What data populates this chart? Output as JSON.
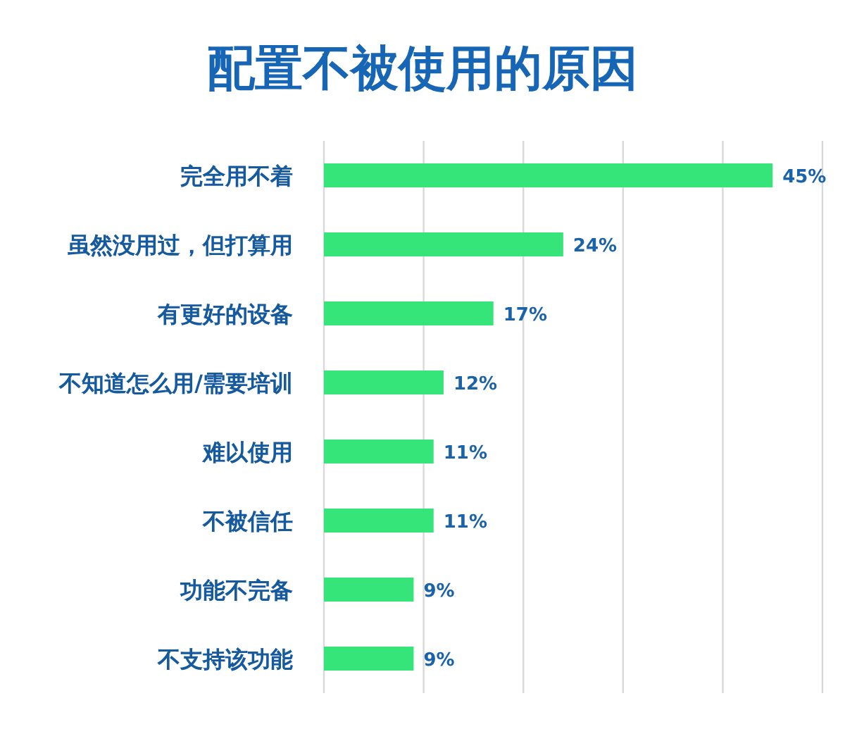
{
  "chart_data": {
    "type": "bar",
    "orientation": "horizontal",
    "title": "配置不被使用的原因",
    "categories": [
      "完全用不着",
      "虽然没用过，但打算用",
      "有更好的设备",
      "不知道怎么用/需要培训",
      "难以使用",
      "不被信任",
      "功能不完备",
      "不支持该功能"
    ],
    "values": [
      45,
      24,
      17,
      12,
      11,
      11,
      9,
      9
    ],
    "value_labels": [
      "45%",
      "24%",
      "17%",
      "12%",
      "11%",
      "11%",
      "9%",
      "9%"
    ],
    "color": "#36e57a",
    "xlim": [
      0,
      50
    ],
    "xticks": [
      {
        "value": 0,
        "label": null
      },
      {
        "value": 10,
        "label": null
      },
      {
        "value": 20,
        "label": null
      },
      {
        "value": 30,
        "label": null
      },
      {
        "value": 40,
        "label": null
      },
      {
        "value": 50,
        "label": null
      }
    ],
    "grid": "x"
  }
}
